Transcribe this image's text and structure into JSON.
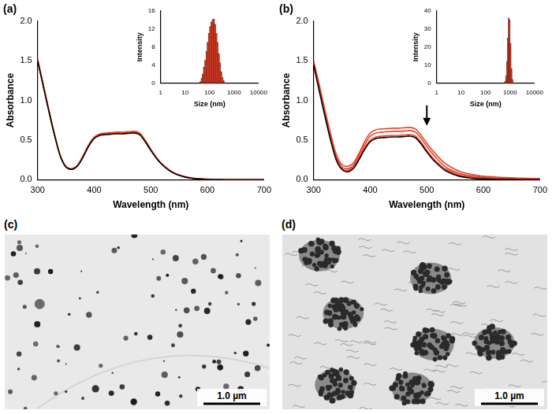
{
  "chart_data": [
    {
      "type": "line",
      "title": "(a)",
      "x_label": "Wavelength (nm)",
      "y_label": "Absorbance",
      "x": [
        300,
        310,
        320,
        330,
        340,
        350,
        360,
        370,
        380,
        390,
        400,
        410,
        420,
        430,
        440,
        450,
        460,
        470,
        480,
        490,
        500,
        510,
        520,
        530,
        540,
        550,
        560,
        570,
        580,
        590,
        600,
        610,
        620,
        630,
        640,
        650,
        660,
        670,
        680,
        690,
        700
      ],
      "series": [
        {
          "color": "#e8432a",
          "values": [
            1.53,
            1.2,
            0.88,
            0.57,
            0.31,
            0.17,
            0.14,
            0.18,
            0.3,
            0.44,
            0.54,
            0.58,
            0.59,
            0.595,
            0.6,
            0.6,
            0.605,
            0.61,
            0.59,
            0.5,
            0.385,
            0.28,
            0.2,
            0.14,
            0.09,
            0.06,
            0.04,
            0.025,
            0.016,
            0.01,
            0.007,
            0.005,
            0.004,
            0.003,
            0.002,
            0.002,
            0.001,
            0.001,
            0.001,
            0.001,
            0
          ]
        },
        {
          "color": "#e8432a",
          "values": [
            1.51,
            1.19,
            0.87,
            0.565,
            0.305,
            0.165,
            0.135,
            0.175,
            0.29,
            0.43,
            0.53,
            0.57,
            0.58,
            0.585,
            0.59,
            0.59,
            0.595,
            0.6,
            0.58,
            0.49,
            0.378,
            0.275,
            0.195,
            0.135,
            0.088,
            0.058,
            0.037,
            0.023,
            0.015,
            0.01,
            0.006,
            0.004,
            0.003,
            0.002,
            0.002,
            0.001,
            0.001,
            0.001,
            0,
            0,
            0
          ]
        },
        {
          "color": "#000000",
          "values": [
            1.5,
            1.18,
            0.86,
            0.56,
            0.3,
            0.16,
            0.13,
            0.17,
            0.28,
            0.42,
            0.52,
            0.56,
            0.57,
            0.575,
            0.58,
            0.58,
            0.585,
            0.59,
            0.57,
            0.48,
            0.37,
            0.27,
            0.19,
            0.13,
            0.085,
            0.055,
            0.035,
            0.022,
            0.014,
            0.009,
            0.006,
            0.004,
            0.003,
            0.002,
            0.002,
            0.001,
            0.001,
            0.001,
            0,
            0,
            0
          ]
        }
      ],
      "xlim": [
        300,
        700
      ],
      "xticks": [
        300,
        400,
        500,
        600,
        700
      ],
      "ylim": [
        0,
        2
      ],
      "yticks": [
        {
          "value": 0,
          "label": "0.0"
        },
        0.5,
        {
          "value": 1,
          "label": "1.0"
        },
        1.5,
        {
          "value": 2,
          "label": "2.0"
        }
      ],
      "grid": false,
      "inset": {
        "type": "histogram",
        "x_label": "Size (nm)",
        "y_label": "Intensity",
        "log": "x",
        "bins": [
          40,
          45,
          50,
          56,
          63,
          71,
          79,
          89,
          100,
          112,
          126,
          141,
          158,
          178,
          200,
          224,
          251,
          282,
          316,
          355,
          398
        ],
        "values": [
          0.3,
          1,
          2,
          3.5,
          5,
          7,
          9,
          11,
          12.5,
          13.5,
          14,
          14.2,
          13,
          11,
          9,
          6.5,
          4.5,
          2.5,
          1.2,
          0.5
        ],
        "color": "#e8432a",
        "xlim": [
          1,
          10000
        ],
        "xticks": [
          1,
          10,
          100,
          1000,
          10000
        ],
        "ylim": [
          0,
          16
        ],
        "yticks": [
          0,
          4,
          8,
          12,
          16
        ],
        "grid": false
      }
    },
    {
      "type": "line",
      "title": "(b)",
      "x_label": "Wavelength (nm)",
      "y_label": "Absorbance",
      "x": [
        300,
        310,
        320,
        330,
        340,
        350,
        360,
        370,
        380,
        390,
        400,
        410,
        420,
        430,
        440,
        450,
        460,
        470,
        480,
        490,
        500,
        510,
        520,
        530,
        540,
        550,
        560,
        570,
        580,
        590,
        600,
        610,
        620,
        630,
        640,
        650,
        660,
        670,
        680,
        690,
        700
      ],
      "series": [
        {
          "color": "#e8432a",
          "values": [
            1.5,
            1.2,
            0.88,
            0.58,
            0.32,
            0.19,
            0.17,
            0.21,
            0.33,
            0.48,
            0.59,
            0.63,
            0.64,
            0.645,
            0.65,
            0.65,
            0.655,
            0.66,
            0.64,
            0.56,
            0.46,
            0.37,
            0.29,
            0.22,
            0.17,
            0.13,
            0.1,
            0.08,
            0.065,
            0.055,
            0.045,
            0.04,
            0.035,
            0.03,
            0.028,
            0.025,
            0.022,
            0.02,
            0.018,
            0.016,
            0.015
          ]
        },
        {
          "color": "#e8432a",
          "values": [
            1.48,
            1.17,
            0.85,
            0.55,
            0.29,
            0.16,
            0.14,
            0.18,
            0.3,
            0.44,
            0.55,
            0.59,
            0.6,
            0.605,
            0.61,
            0.61,
            0.615,
            0.62,
            0.6,
            0.52,
            0.42,
            0.33,
            0.25,
            0.18,
            0.13,
            0.1,
            0.075,
            0.058,
            0.046,
            0.038,
            0.032,
            0.027,
            0.023,
            0.02,
            0.018,
            0.016,
            0.014,
            0.012,
            0.011,
            0.01,
            0.009
          ]
        },
        {
          "color": "#e8432a",
          "values": [
            1.46,
            1.14,
            0.82,
            0.52,
            0.27,
            0.14,
            0.12,
            0.16,
            0.27,
            0.4,
            0.5,
            0.54,
            0.55,
            0.555,
            0.56,
            0.56,
            0.565,
            0.57,
            0.55,
            0.47,
            0.37,
            0.28,
            0.21,
            0.15,
            0.11,
            0.08,
            0.058,
            0.044,
            0.034,
            0.027,
            0.022,
            0.018,
            0.015,
            0.013,
            0.011,
            0.01,
            0.009,
            0.008,
            0.007,
            0.006,
            0.005
          ]
        },
        {
          "color": "#000000",
          "values": [
            1.45,
            1.12,
            0.8,
            0.5,
            0.25,
            0.13,
            0.1,
            0.14,
            0.25,
            0.38,
            0.48,
            0.52,
            0.53,
            0.535,
            0.54,
            0.54,
            0.545,
            0.55,
            0.53,
            0.45,
            0.35,
            0.26,
            0.19,
            0.13,
            0.09,
            0.06,
            0.04,
            0.03,
            0.02,
            0.015,
            0.01,
            0.008,
            0.006,
            0.005,
            0.004,
            0.003,
            0.002,
            0.002,
            0.001,
            0.001,
            0.001
          ]
        }
      ],
      "xlim": [
        300,
        700
      ],
      "xticks": [
        300,
        400,
        500,
        600,
        700
      ],
      "ylim": [
        0,
        2
      ],
      "yticks": [
        {
          "value": 0,
          "label": "0.0"
        },
        0.5,
        {
          "value": 1,
          "label": "1.0"
        },
        1.5,
        {
          "value": 2,
          "label": "2.0"
        }
      ],
      "grid": false,
      "annotations": [
        {
          "x": 500,
          "y": 0.68,
          "marker": "arrow"
        }
      ],
      "inset": {
        "type": "histogram",
        "x_label": "Size (nm)",
        "y_label": "Intensity",
        "log": "x",
        "bins": [
          600,
          660,
          720,
          780,
          850,
          920,
          1000,
          1090,
          1190,
          1300
        ],
        "values": [
          1,
          4,
          12,
          25,
          36,
          35,
          22,
          8,
          2
        ],
        "color": "#e8432a",
        "xlim": [
          1,
          10000
        ],
        "xticks": [
          1,
          10,
          100,
          1000,
          10000
        ],
        "ylim": [
          0,
          40
        ],
        "yticks": [
          0,
          10,
          20,
          30,
          40
        ],
        "grid": false
      }
    }
  ],
  "images": [
    {
      "title": "(c)",
      "scale_bar": "1.0 µm"
    },
    {
      "title": "(d)",
      "scale_bar": "1.0 µm"
    }
  ]
}
